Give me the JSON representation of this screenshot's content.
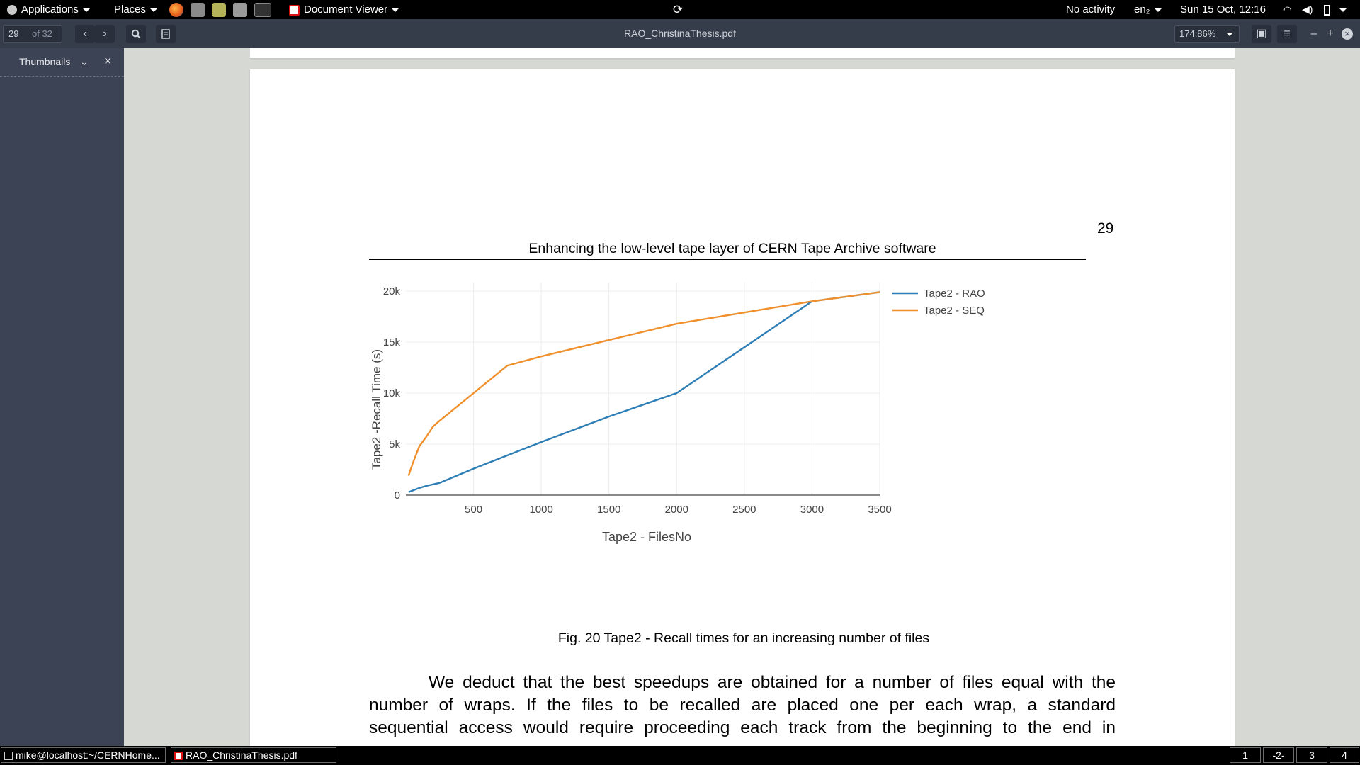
{
  "topbar": {
    "applications_label": "Applications",
    "places_label": "Places",
    "app_menu_label": "Document Viewer",
    "activity_label": "No activity",
    "keyboard_label": "en₂",
    "datetime": "Sun 15 Oct, 12:16"
  },
  "toolbar": {
    "page_current": "29",
    "page_total": "of 32",
    "document_title": "RAO_ChristinaThesis.pdf",
    "zoom": "174.86%"
  },
  "sidebar": {
    "mode_label": "Thumbnails"
  },
  "document": {
    "page_number": "29",
    "header_title": "Enhancing the low-level tape layer of CERN Tape Archive software",
    "figure_caption": "Fig. 20 Tape2 - Recall times for an increasing number of files",
    "body_lines": [
      "We deduct that the best speedups are obtained for a number of files equal with the",
      "number of wraps. If the files to be recalled are placed one per each wrap, a standard",
      "sequential access would require proceeding each track from the beginning to the end in"
    ]
  },
  "chart_data": {
    "type": "line",
    "title": "",
    "xlabel": "Tape2 - FilesNo",
    "ylabel": "Tape2 -Recall Time (s)",
    "xlim": [
      0,
      3500
    ],
    "ylim": [
      0,
      20000
    ],
    "x_ticks": [
      500,
      1000,
      1500,
      2000,
      2500,
      3000,
      3500
    ],
    "y_ticks": [
      0,
      5000,
      10000,
      15000,
      20000
    ],
    "y_tick_labels": [
      "0",
      "5k",
      "10k",
      "15k",
      "20k"
    ],
    "legend": "top-right",
    "series": [
      {
        "name": "Tape2 - RAO",
        "color": "#2e7eb6",
        "x": [
          20,
          100,
          150,
          250,
          500,
          1000,
          1500,
          2000,
          2500,
          3000,
          3500
        ],
        "y": [
          300,
          700,
          900,
          1200,
          2600,
          5200,
          7700,
          10000,
          14500,
          19000,
          19900
        ]
      },
      {
        "name": "Tape2 - SEQ",
        "color": "#f0902c",
        "x": [
          20,
          50,
          100,
          150,
          200,
          250,
          500,
          750,
          1000,
          1500,
          2000,
          2500,
          3000,
          3500
        ],
        "y": [
          1900,
          3100,
          4800,
          5700,
          6700,
          7300,
          10000,
          12700,
          13600,
          15200,
          16800,
          17900,
          19000,
          19900
        ]
      }
    ]
  },
  "taskbar": {
    "tasks": [
      "mike@localhost:~/CERNHome...",
      "RAO_ChristinaThesis.pdf"
    ],
    "workspaces": [
      "1",
      "-2-",
      "3",
      "4"
    ]
  }
}
